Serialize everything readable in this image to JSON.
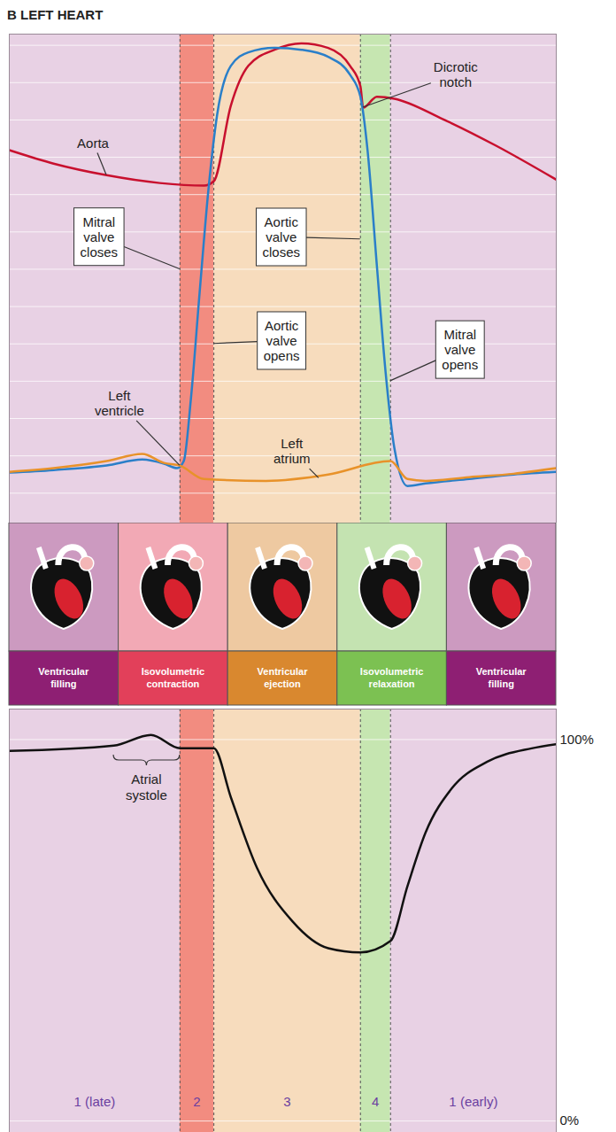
{
  "title": "B LEFT HEART",
  "phases": [
    {
      "label": "1 (late)",
      "start": 0,
      "end": 31.2,
      "color": "#e8d1e4"
    },
    {
      "label": "2",
      "start": 31.2,
      "end": 37.4,
      "color": "#f28c80"
    },
    {
      "label": "3",
      "start": 37.4,
      "end": 64.2,
      "color": "#f7dcbd"
    },
    {
      "label": "4",
      "start": 64.2,
      "end": 69.7,
      "color": "#c6e6b1"
    },
    {
      "label": "1 (early)",
      "start": 69.7,
      "end": 100,
      "color": "#e8d1e4"
    }
  ],
  "stages": [
    {
      "label": "Ventricular filling",
      "color": "#8e1f73"
    },
    {
      "label": "Isovolumetric contraction",
      "color": "#e2405a"
    },
    {
      "label": "Ventricular ejection",
      "color": "#d9882f"
    },
    {
      "label": "Isovolumetric relaxation",
      "color": "#7cc152"
    },
    {
      "label": "Ventricular filling",
      "color": "#8e1f73"
    }
  ],
  "chart_data": [
    {
      "type": "line",
      "xlim": [
        0,
        100
      ],
      "ylim": [
        -8,
        123
      ],
      "yticks": [
        0,
        10,
        20,
        30,
        40,
        50,
        60,
        70,
        80,
        90,
        100,
        110,
        120
      ],
      "grid": true,
      "tick_labels": false,
      "series": [
        {
          "name": "Aorta",
          "color": "#c8102e",
          "x": [
            0,
            8.1,
            17.8,
            27.5,
            35.6,
            37.4,
            40.5,
            43.7,
            48.5,
            53.4,
            58.3,
            62.3,
            64.2,
            64.7,
            67.2,
            70.4,
            79.3,
            89.0,
            100
          ],
          "values": [
            91.9,
            88.3,
            85.2,
            83.1,
            82.4,
            83.6,
            103.8,
            114.5,
            118.8,
            120.5,
            119.3,
            114.5,
            109.0,
            103.3,
            106.2,
            105.7,
            100.2,
            93.1,
            84.0
          ]
        },
        {
          "name": "Left ventricle",
          "color": "#2a7fc9",
          "x": [
            0,
            8.1,
            17.8,
            24.3,
            28.3,
            30.7,
            31.9,
            33.2,
            34.8,
            36.4,
            38.0,
            40.5,
            43.7,
            48.5,
            53.4,
            58.3,
            62.3,
            64.2,
            65.5,
            67.2,
            68.8,
            70.4,
            72.8,
            76.1,
            84.1,
            92.2,
            100
          ],
          "values": [
            5.5,
            6.2,
            7.4,
            9.0,
            7.9,
            6.7,
            8.6,
            25.2,
            53.8,
            81.2,
            101.4,
            114.5,
            118.1,
            119.3,
            118.8,
            116.9,
            112.1,
            106.2,
            91.9,
            61.0,
            32.4,
            12.1,
            1.9,
            2.6,
            3.8,
            5.0,
            5.7
          ]
        },
        {
          "name": "Left atrium",
          "color": "#e8922a",
          "x": [
            0,
            8.1,
            17.8,
            24.3,
            28.3,
            31.2,
            35.6,
            46.9,
            58.3,
            69.7,
            72.8,
            76.1,
            84.1,
            92.2,
            100
          ],
          "values": [
            5.7,
            6.7,
            8.6,
            10.5,
            8.1,
            7.4,
            3.8,
            3.3,
            5.0,
            8.6,
            3.8,
            3.3,
            4.3,
            5.2,
            6.7
          ]
        }
      ],
      "annotations": [
        {
          "text": "Aorta",
          "x": 17.8,
          "y": 85.2
        },
        {
          "text": "Mitral valve closes",
          "x": 31.2,
          "y": 60
        },
        {
          "text": "Aortic valve opens",
          "x": 37.4,
          "y": 40
        },
        {
          "text": "Left ventricle",
          "x": 31.2,
          "y": 7.4
        },
        {
          "text": "Dicrotic notch",
          "x": 64.7,
          "y": 103.3
        },
        {
          "text": "Aortic valve closes",
          "x": 64.2,
          "y": 68
        },
        {
          "text": "Mitral valve opens",
          "x": 69.7,
          "y": 30
        },
        {
          "text": "Left atrium",
          "x": 56.6,
          "y": 4.0
        }
      ]
    },
    {
      "type": "line",
      "xlim": [
        0,
        100
      ],
      "ylim": [
        -3,
        108
      ],
      "yticks": [
        {
          "value": 0,
          "label": "0%"
        },
        {
          "value": 100,
          "label": "100%"
        }
      ],
      "grid": true,
      "tick_labels": "y",
      "color": "#111111",
      "x": [
        0,
        19.1,
        25.9,
        31.2,
        37.4,
        40.5,
        45.3,
        51.8,
        58.3,
        64.2,
        69.7,
        72.8,
        76.1,
        80.9,
        87.4,
        95.5,
        100
      ],
      "values": [
        97.0,
        98.4,
        101.2,
        97.7,
        97.7,
        84.9,
        66.3,
        52.3,
        45.3,
        44.2,
        47.2,
        61.6,
        75.6,
        87.2,
        94.2,
        97.7,
        98.8
      ],
      "annotations": [
        {
          "text": "Atrial systole",
          "start": 19.1,
          "end": 31.2
        }
      ]
    }
  ]
}
